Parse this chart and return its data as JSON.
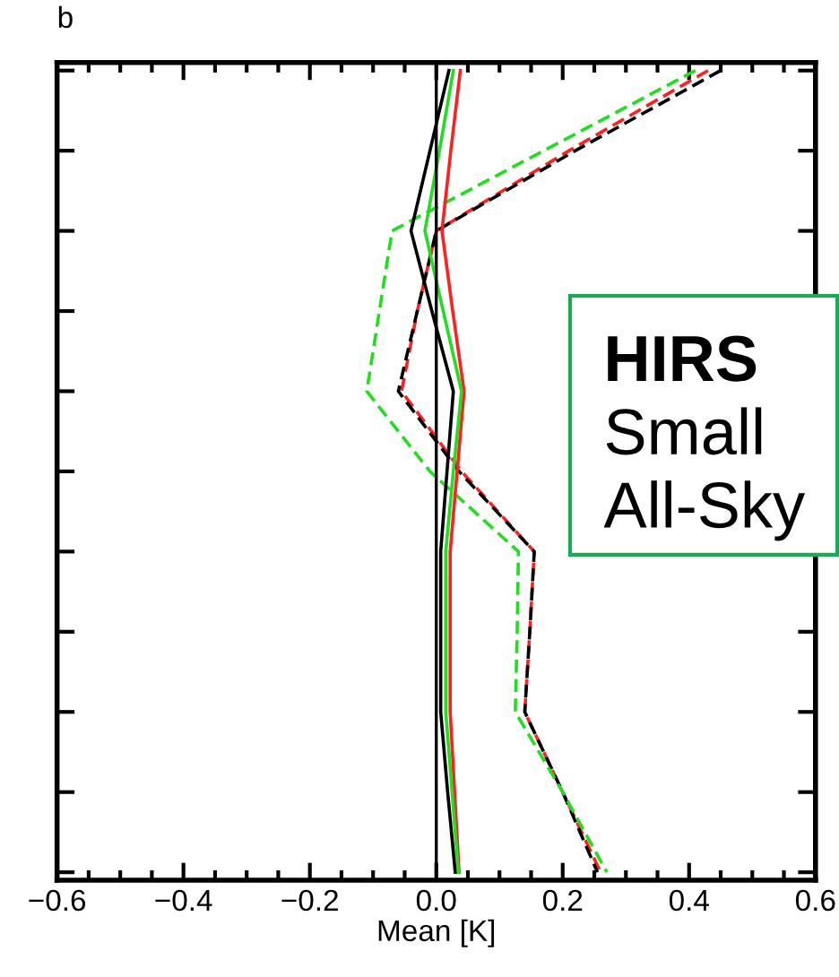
{
  "chart_data": {
    "type": "line",
    "orientation": "horizontal",
    "title": "b",
    "xlabel": "Mean [K]",
    "tick_labels": "x",
    "grid": false,
    "categories": [
      null,
      null,
      null,
      null,
      null,
      null,
      null,
      null,
      null,
      null,
      null
    ],
    "xlim": [
      -0.6,
      0.6
    ],
    "xticks": [
      {
        "value": -0.6,
        "label": "−0.6"
      },
      {
        "value": -0.4,
        "label": "−0.4"
      },
      {
        "value": -0.2,
        "label": "−0.2"
      },
      {
        "value": 0,
        "label": "0.0"
      },
      {
        "value": 0.2,
        "label": "0.2"
      },
      {
        "value": 0.4,
        "label": "0.4"
      },
      {
        "value": 0.6,
        "label": "0.6"
      }
    ],
    "ref_lines": [
      {
        "axis": "x",
        "value": 0,
        "color": "#000000",
        "line_style": "solid"
      }
    ],
    "series": [
      {
        "color": "#ff2020",
        "line_style": "dashed",
        "values": [
          0.43,
          0.21,
          0.0,
          -0.03,
          -0.055,
          0.04,
          0.155,
          0.148,
          0.14,
          0.2,
          0.26
        ]
      },
      {
        "color": "#000000",
        "line_style": "dashed",
        "values": [
          0.45,
          0.22,
          0.0,
          -0.03,
          -0.06,
          0.036,
          0.155,
          0.148,
          0.14,
          0.2,
          0.255
        ]
      },
      {
        "color": "#22dd22",
        "line_style": "dashed",
        "values": [
          0.41,
          0.17,
          -0.07,
          -0.09,
          -0.11,
          -0.01,
          0.13,
          0.128,
          0.125,
          0.2,
          0.27
        ]
      },
      {
        "color": "#ff2020",
        "line_style": "solid",
        "values": [
          0.038,
          0.023,
          0.009,
          0.026,
          0.044,
          0.033,
          0.022,
          0.022,
          0.022,
          0.029,
          0.036
        ]
      },
      {
        "color": "#22dd22",
        "line_style": "solid",
        "values": [
          0.027,
          0.005,
          -0.018,
          0.011,
          0.04,
          0.027,
          0.015,
          0.015,
          0.015,
          0.025,
          0.035
        ]
      },
      {
        "color": "#000000",
        "line_style": "solid",
        "values": [
          0.02,
          -0.01,
          -0.04,
          -0.007,
          0.027,
          0.017,
          0.007,
          0.007,
          0.007,
          0.018,
          0.03
        ]
      }
    ],
    "annotations": [
      "HIRS",
      "Small",
      "All-Sky"
    ]
  }
}
